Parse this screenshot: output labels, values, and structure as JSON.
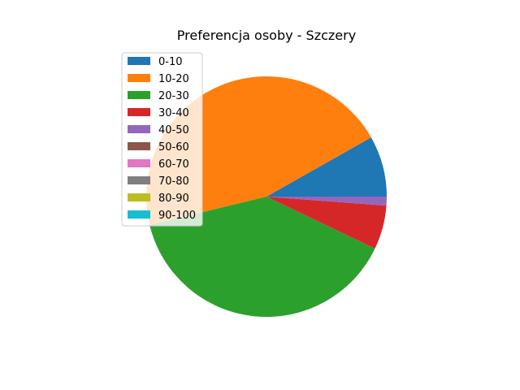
{
  "chart_data": {
    "type": "pie",
    "title": "Preferencja osoby - Szczery",
    "categories": [
      "0-10",
      "10-20",
      "20-30",
      "30-40",
      "40-50",
      "50-60",
      "60-70",
      "70-80",
      "80-90",
      "90-100"
    ],
    "values": [
      8.2,
      45.6,
      39.1,
      5.9,
      1.2,
      0,
      0,
      0,
      0,
      0
    ],
    "colors": [
      "#1f77b4",
      "#ff7f0e",
      "#2ca02c",
      "#d62728",
      "#9467bd",
      "#8c564b",
      "#e377c2",
      "#7f7f7f",
      "#bcbd22",
      "#17becf"
    ],
    "start_angle_deg": 0,
    "direction": "counterclockwise",
    "legend_position": "top-left"
  }
}
